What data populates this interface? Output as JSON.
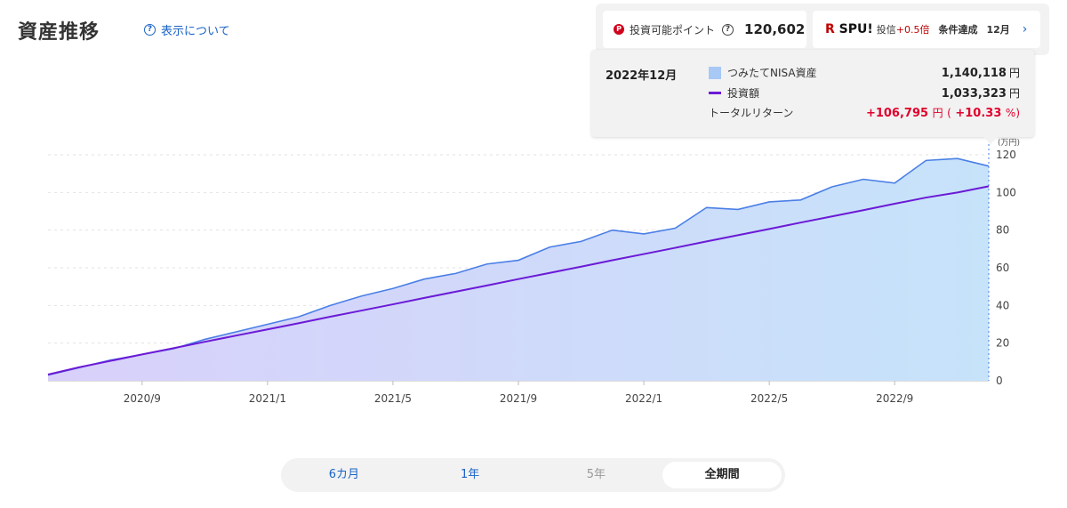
{
  "header": {
    "title": "資産推移",
    "help_label": "表示について"
  },
  "points": {
    "label": "投資可能ポイント",
    "value": "120,602"
  },
  "spu": {
    "logo_r": "R",
    "logo_text": "SPU!",
    "text": "投信",
    "bonus": "+0.5倍",
    "condition": "条件達成",
    "month": "12月"
  },
  "tooltip": {
    "date": "2022年12月",
    "asset_label": "つみたてNISA資産",
    "asset_value": "1,140,118",
    "invest_label": "投資額",
    "invest_value": "1,033,323",
    "return_label": "トータルリターン",
    "return_value": "+106,795",
    "return_pct": "+10.33",
    "yen": "円",
    "pct": "%",
    "paren_open": "(",
    "paren_close": ")"
  },
  "chart_data": {
    "type": "area",
    "unit_label": "(万円)",
    "ylim": [
      0,
      120
    ],
    "yticks": [
      0,
      20,
      40,
      60,
      80,
      100,
      120
    ],
    "x_tick_labels": [
      {
        "index": 3,
        "label": "2020/9"
      },
      {
        "index": 7,
        "label": "2021/1"
      },
      {
        "index": 11,
        "label": "2021/5"
      },
      {
        "index": 15,
        "label": "2021/9"
      },
      {
        "index": 19,
        "label": "2022/1"
      },
      {
        "index": 23,
        "label": "2022/5"
      },
      {
        "index": 27,
        "label": "2022/9"
      }
    ],
    "series": [
      {
        "name": "つみたてNISA資産",
        "color": "#4a7fe6",
        "values": [
          3,
          7,
          11,
          14,
          17,
          22,
          26,
          30,
          34,
          40,
          45,
          49,
          54,
          57,
          62,
          64,
          71,
          74,
          80,
          78,
          81,
          92,
          91,
          95,
          96,
          103,
          107,
          105,
          117,
          118,
          114
        ]
      },
      {
        "name": "投資額",
        "color": "#6b1ad6",
        "values": [
          3.3,
          7.2,
          10.6,
          14.0,
          17.3,
          20.7,
          24.0,
          27.3,
          30.6,
          34.0,
          37.3,
          40.6,
          44.0,
          47.3,
          50.6,
          54.0,
          57.3,
          60.6,
          64.0,
          67.3,
          70.6,
          74.0,
          77.3,
          80.6,
          84.0,
          87.3,
          90.6,
          94.0,
          97.3,
          100.0,
          103.3
        ]
      }
    ]
  },
  "periods": {
    "p6m": "6カ月",
    "p1y": "1年",
    "p5y": "5年",
    "all": "全期間"
  }
}
